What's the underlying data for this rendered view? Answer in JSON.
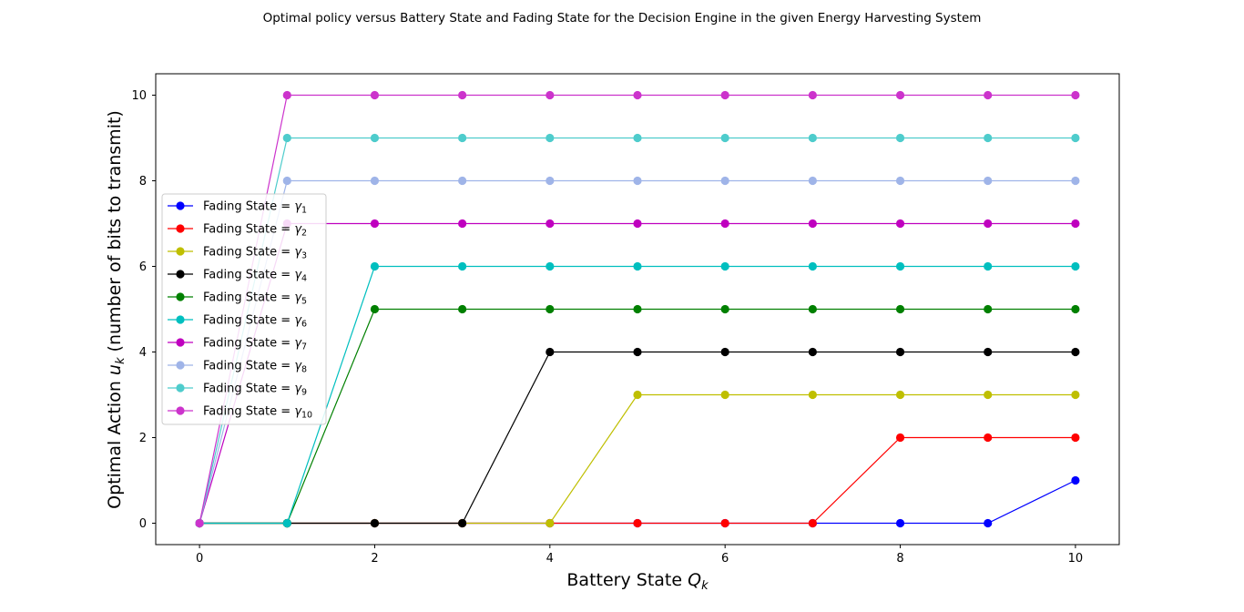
{
  "chart_data": {
    "type": "line",
    "title": "Optimal policy versus Battery State and Fading State for the Decision Engine in the given Energy Harvesting System",
    "xlabel_prefix": "Battery State ",
    "xlabel_var": "Q",
    "xlabel_sub": "k",
    "ylabel_prefix": "Optimal Action ",
    "ylabel_var": "u",
    "ylabel_sub": "k",
    "ylabel_suffix": " (number of bits to transmit)",
    "x": [
      0,
      1,
      2,
      3,
      4,
      5,
      6,
      7,
      8,
      9,
      10
    ],
    "xlim": [
      -0.5,
      10.5
    ],
    "ylim": [
      -0.5,
      10.5
    ],
    "xticks": [
      "0",
      "2",
      "4",
      "6",
      "8",
      "10"
    ],
    "yticks": [
      "0",
      "2",
      "4",
      "6",
      "8",
      "10"
    ],
    "grid": false,
    "legend_position": "center-left",
    "legend_prefix": "Fading State = ",
    "series": [
      {
        "name": "γ1",
        "var": "γ",
        "sub": "1",
        "color": "#0000ff",
        "values": [
          0,
          0,
          0,
          0,
          0,
          0,
          0,
          0,
          0,
          0,
          1
        ]
      },
      {
        "name": "γ2",
        "var": "γ",
        "sub": "2",
        "color": "#ff0000",
        "values": [
          0,
          0,
          0,
          0,
          0,
          0,
          0,
          0,
          2,
          2,
          2
        ]
      },
      {
        "name": "γ3",
        "var": "γ",
        "sub": "3",
        "color": "#bfbf00",
        "values": [
          0,
          0,
          0,
          0,
          0,
          3,
          3,
          3,
          3,
          3,
          3
        ]
      },
      {
        "name": "γ4",
        "var": "γ",
        "sub": "4",
        "color": "#000000",
        "values": [
          0,
          0,
          0,
          0,
          4,
          4,
          4,
          4,
          4,
          4,
          4
        ]
      },
      {
        "name": "γ5",
        "var": "γ",
        "sub": "5",
        "color": "#008000",
        "values": [
          0,
          0,
          5,
          5,
          5,
          5,
          5,
          5,
          5,
          5,
          5
        ]
      },
      {
        "name": "γ6",
        "var": "γ",
        "sub": "6",
        "color": "#00bfbf",
        "values": [
          0,
          0,
          6,
          6,
          6,
          6,
          6,
          6,
          6,
          6,
          6
        ]
      },
      {
        "name": "γ7",
        "var": "γ",
        "sub": "7",
        "color": "#bf00bf",
        "values": [
          0,
          7,
          7,
          7,
          7,
          7,
          7,
          7,
          7,
          7,
          7
        ]
      },
      {
        "name": "γ8",
        "var": "γ",
        "sub": "8",
        "color": "#9fb4e8",
        "values": [
          0,
          8,
          8,
          8,
          8,
          8,
          8,
          8,
          8,
          8,
          8
        ]
      },
      {
        "name": "γ9",
        "var": "γ",
        "sub": "9",
        "color": "#4ecccc",
        "values": [
          0,
          9,
          9,
          9,
          9,
          9,
          9,
          9,
          9,
          9,
          9
        ]
      },
      {
        "name": "γ10",
        "var": "γ",
        "sub": "10",
        "color": "#cc33cc",
        "values": [
          0,
          10,
          10,
          10,
          10,
          10,
          10,
          10,
          10,
          10,
          10
        ]
      }
    ]
  }
}
